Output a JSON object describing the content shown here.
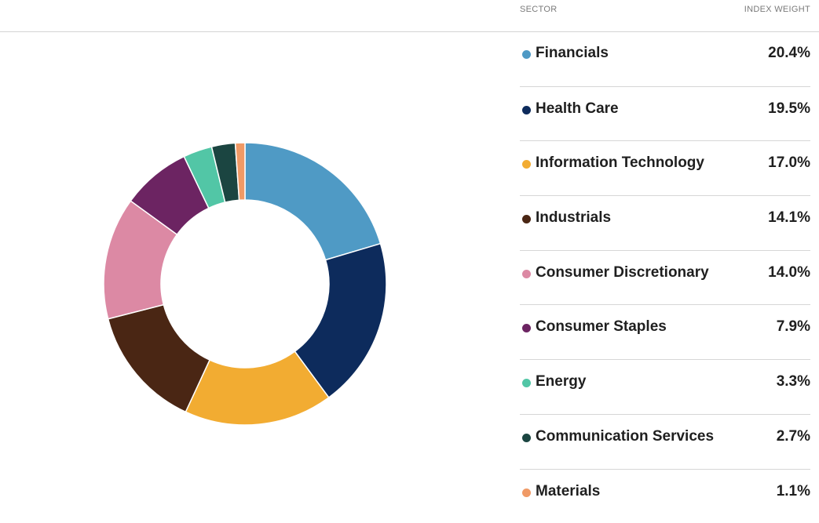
{
  "table": {
    "sector_header": "SECTOR",
    "weight_header": "INDEX WEIGHT"
  },
  "chart_data": {
    "type": "pie",
    "categories": [
      "Financials",
      "Health Care",
      "Information Technology",
      "Industrials",
      "Consumer Discretionary",
      "Consumer Staples",
      "Energy",
      "Communication Services",
      "Materials"
    ],
    "values": [
      20.4,
      19.5,
      17.0,
      14.1,
      14.0,
      7.9,
      3.3,
      2.7,
      1.1
    ],
    "labels": [
      "20.4%",
      "19.5%",
      "17.0%",
      "14.1%",
      "14.0%",
      "7.9%",
      "3.3%",
      "2.7%",
      "1.1%"
    ],
    "colors": [
      "#4f9ac5",
      "#0d2b5c",
      "#f2ac32",
      "#4a2614",
      "#dc89a4",
      "#6c2462",
      "#52c6a6",
      "#1b4541",
      "#f09a66"
    ],
    "donut": true,
    "legend_position": "right"
  }
}
